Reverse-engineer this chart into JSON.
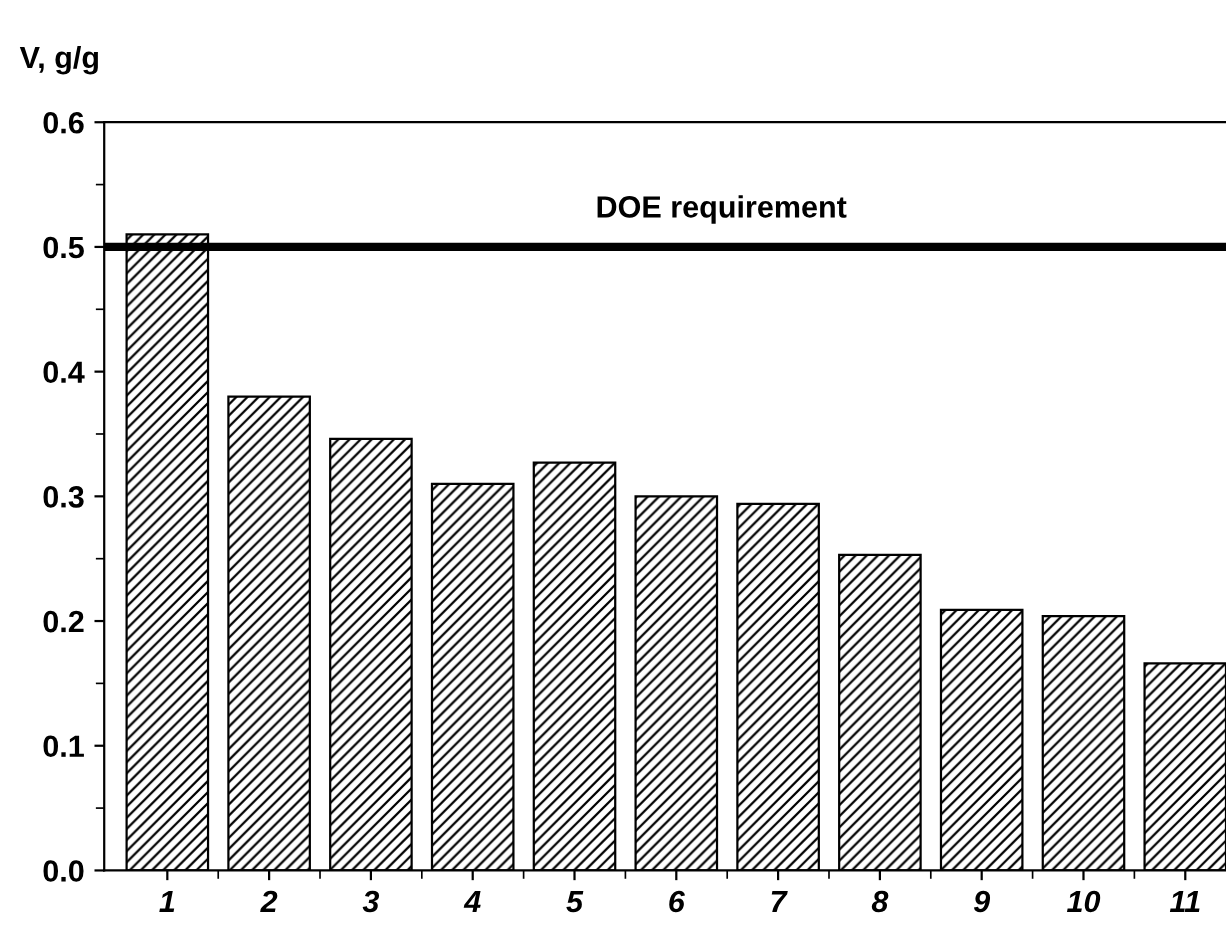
{
  "chart_data": {
    "type": "bar",
    "ylabel": "V, g/g",
    "categories": [
      "1",
      "2",
      "3",
      "4",
      "5",
      "6",
      "7",
      "8",
      "9",
      "10",
      "11"
    ],
    "values": [
      0.51,
      0.38,
      0.346,
      0.31,
      0.327,
      0.3,
      0.294,
      0.253,
      0.209,
      0.204,
      0.166
    ],
    "color": "#000000",
    "ylim": [
      0,
      0.6
    ],
    "yticks": [
      "0.0",
      0.1,
      0.2,
      0.3,
      0.4,
      0.5,
      0.6
    ],
    "ref_lines": [
      {
        "axis": "y",
        "value": 0.5,
        "label": "DOE requirement",
        "color": "#000000"
      }
    ],
    "grid": false,
    "legend": false
  }
}
